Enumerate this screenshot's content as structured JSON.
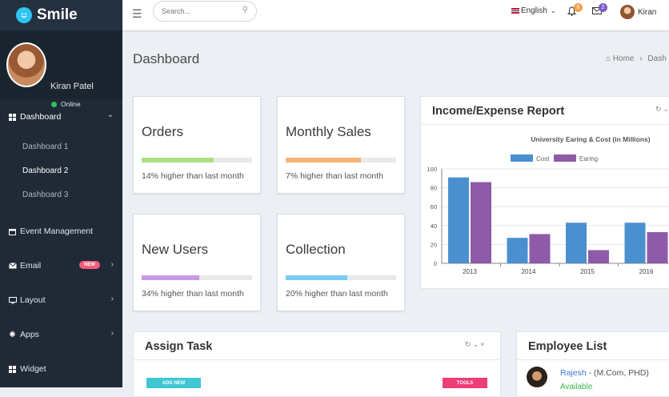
{
  "brand": {
    "name": "Smile"
  },
  "user": {
    "name": "Kiran Patel",
    "status": "Online"
  },
  "nav": {
    "dashboard": "Dashboard",
    "sub": [
      "Dashboard 1",
      "Dashboard 2",
      "Dashboard 3"
    ],
    "event": "Event Management",
    "email": "Email",
    "email_badge": "NEW",
    "layout": "Layout",
    "apps": "Apps",
    "widget": "Widget"
  },
  "topbar": {
    "search_placeholder": "Search...",
    "language": "English",
    "notif_count": "6",
    "mail_count": "2",
    "user": "Kiran"
  },
  "page": {
    "title": "Dashboard",
    "crumb_home": "Home",
    "crumb_current": "Dash"
  },
  "stats": [
    {
      "title": "Orders",
      "desc": "14% higher than last month",
      "fill": 0.65,
      "color": "#a8e083"
    },
    {
      "title": "Monthly Sales",
      "desc": "7% higher than last month",
      "fill": 0.68,
      "color": "#f7b374"
    },
    {
      "title": "New Users",
      "desc": "34% higher than last month",
      "fill": 0.52,
      "color": "#c89ae3"
    },
    {
      "title": "Collection",
      "desc": "20% higher than last month",
      "fill": 0.56,
      "color": "#79cdf0"
    }
  ],
  "report": {
    "title": "Income/Expense Report"
  },
  "chart_data": {
    "type": "bar",
    "title": "University Earing & Cost (in Millions)",
    "categories": [
      "2013",
      "2014",
      "2015",
      "2016"
    ],
    "series": [
      {
        "name": "Cost",
        "values": [
          91,
          27,
          43,
          43
        ],
        "color": "#4a90cf"
      },
      {
        "name": "Earing",
        "values": [
          86,
          31,
          14,
          33
        ],
        "color": "#8e5ba8"
      }
    ],
    "ylim": [
      0,
      100
    ],
    "yticks": [
      0,
      20,
      40,
      60,
      80,
      100
    ],
    "legend": "top"
  },
  "assign": {
    "title": "Assign Task",
    "add_btn": "ADD NEW",
    "tools_btn": "TOOLS"
  },
  "employees": {
    "title": "Employee List",
    "items": [
      {
        "name": "Rajesh",
        "degree": "(M.Com, PHD)",
        "status": "Available"
      }
    ]
  }
}
